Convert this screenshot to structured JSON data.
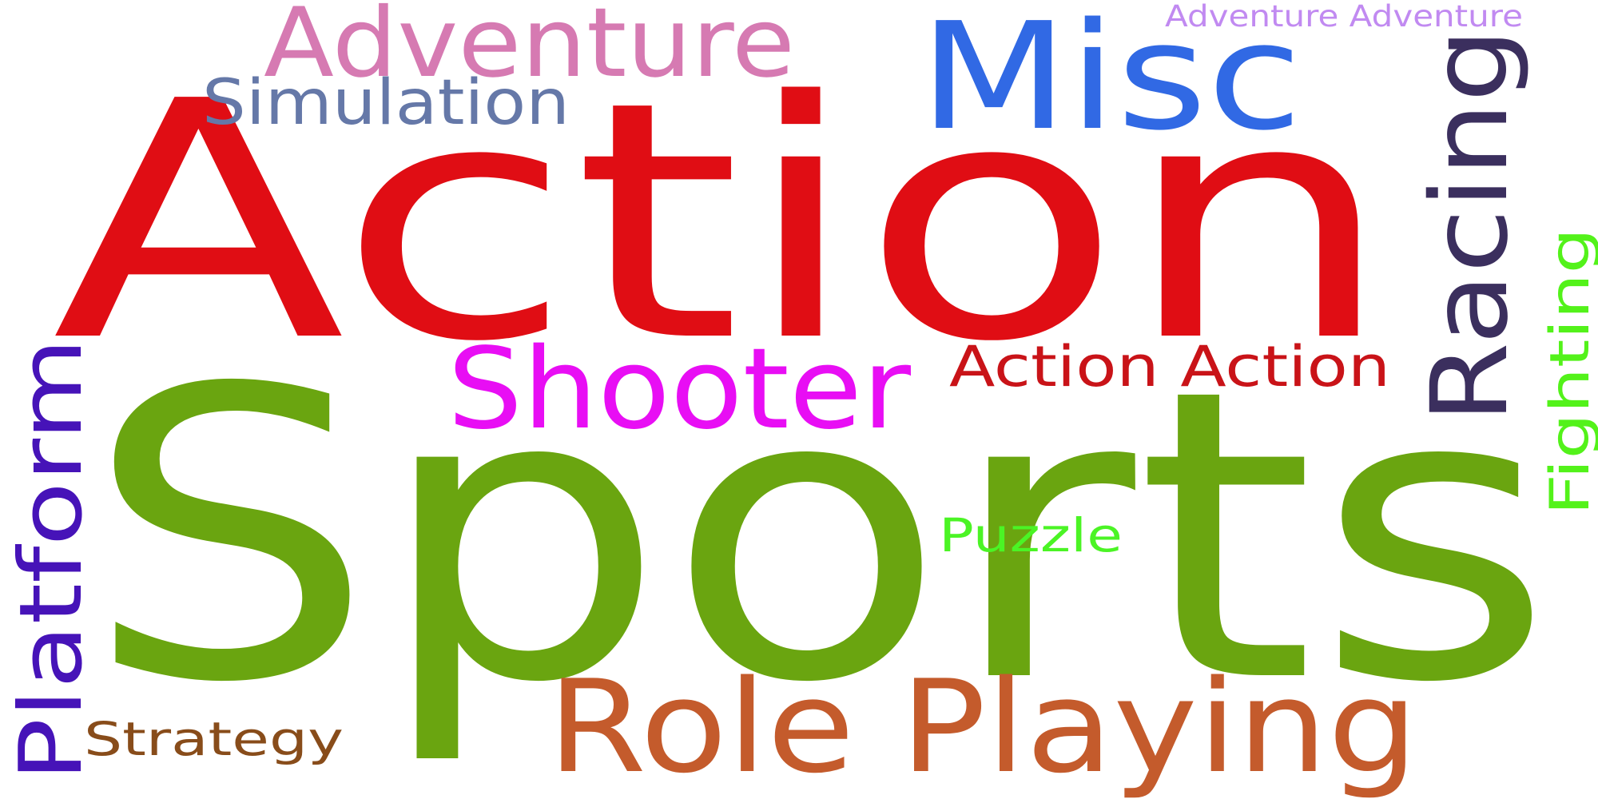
{
  "words": [
    {
      "text": "Sports",
      "color": "#6aa510"
    },
    {
      "text": "Action",
      "color": "#e00d14"
    },
    {
      "text": "Misc",
      "color": "#3169e4"
    },
    {
      "text": "Role Playing",
      "color": "#c45b2c"
    },
    {
      "text": "Adventure",
      "color": "#d67ab2"
    },
    {
      "text": "Shooter",
      "color": "#e80ef4"
    },
    {
      "text": "Racing",
      "color": "#3b2f5e"
    },
    {
      "text": "Platform",
      "color": "#4613b8"
    },
    {
      "text": "Simulation",
      "color": "#6578a8"
    },
    {
      "text": "Action Action",
      "color": "#c91318"
    },
    {
      "text": "Fighting",
      "color": "#53f21a"
    },
    {
      "text": "Puzzle",
      "color": "#4bf425"
    },
    {
      "text": "Strategy",
      "color": "#884c1a"
    },
    {
      "text": "Adventure Adventure",
      "color": "#c18af1"
    }
  ]
}
